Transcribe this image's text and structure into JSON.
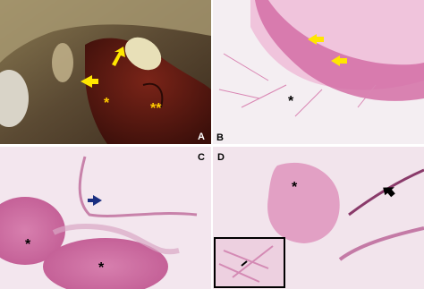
{
  "panels": [
    {
      "label": "A",
      "annotations": [
        "*",
        "**"
      ]
    },
    {
      "label": "B",
      "annotations": [
        "*"
      ]
    },
    {
      "label": "C",
      "annotations": [
        "*",
        "*"
      ]
    },
    {
      "label": "D",
      "annotations": [
        "*"
      ]
    }
  ]
}
